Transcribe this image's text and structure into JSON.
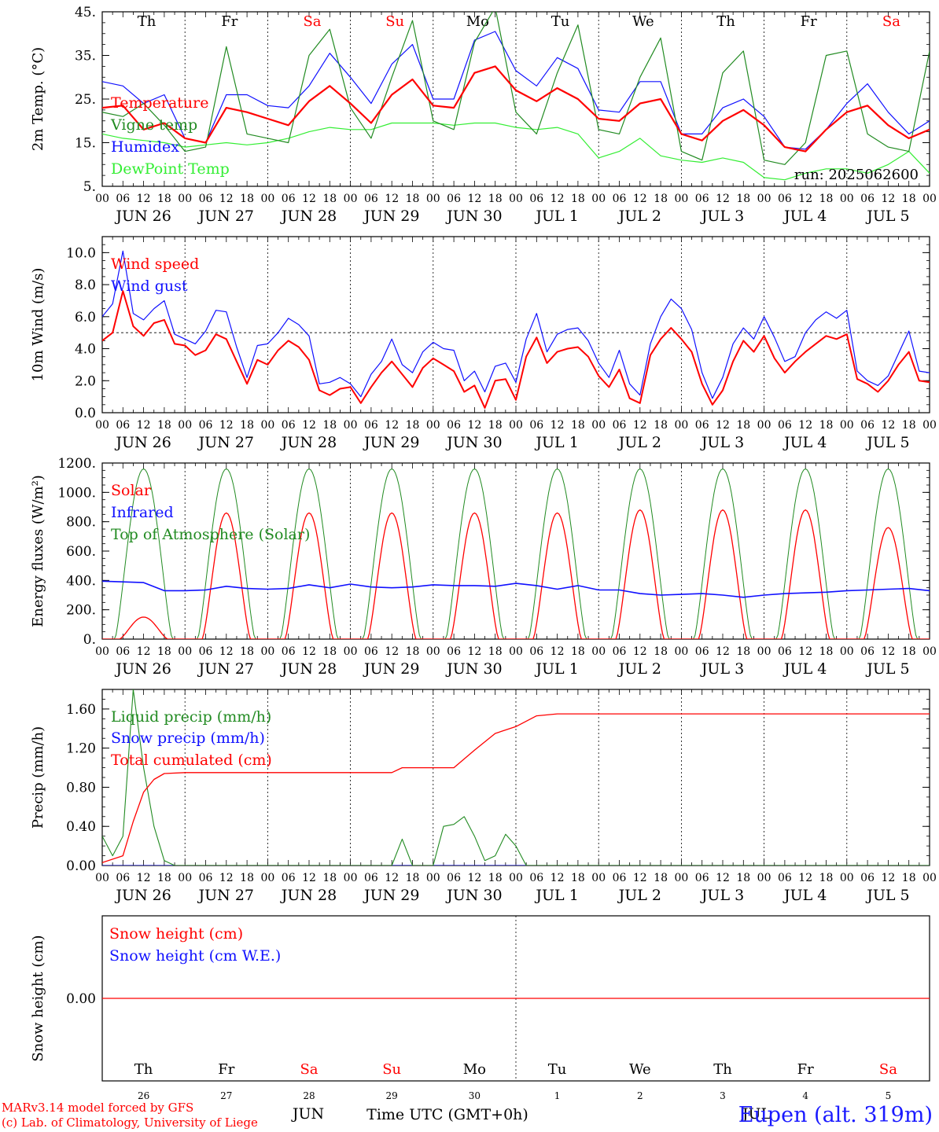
{
  "days": [
    "Th",
    "Fr",
    "Sa",
    "Su",
    "Mo",
    "Tu",
    "We",
    "Th",
    "Fr",
    "Sa"
  ],
  "day_colors": [
    "#000000",
    "#000000",
    "#ff0000",
    "#ff0000",
    "#000000",
    "#000000",
    "#000000",
    "#000000",
    "#000000",
    "#ff0000"
  ],
  "dates": [
    "JUN 26",
    "JUN 27",
    "JUN 28",
    "JUN 29",
    "JUN 30",
    "JUL  1",
    "JUL  2",
    "JUL  3",
    "JUL  4",
    "JUL  5"
  ],
  "hour_ticks": [
    "00",
    "06",
    "12",
    "18"
  ],
  "hour_end": "00",
  "bottom_day_numbers": [
    "26",
    "27",
    "28",
    "29",
    "30",
    "1",
    "2",
    "3",
    "4",
    "5"
  ],
  "bottom_month_left": "JUN",
  "bottom_month_right": "JUL",
  "xlabel": "Time UTC (GMT+0h)",
  "footer_line1": "MARv3.14 model forced by GFS",
  "footer_line2": "(c) Lab. of Climatology, University of Liege",
  "station": "Eupen (alt. 319m)",
  "colors": {
    "red": "#ff0000",
    "green": "#228B22",
    "blue": "#1010ff",
    "lime": "#33ee33",
    "black": "#000000"
  },
  "chart_data": [
    {
      "type": "line",
      "ylabel": "2m Temp. (°C)",
      "ylim": [
        5,
        45
      ],
      "yticks": [
        5,
        15,
        25,
        35,
        45
      ],
      "ytick_labels": [
        "5.",
        "15.",
        "25.",
        "35.",
        "45."
      ],
      "run_label": "run: 2025062600",
      "x_hours": [
        0,
        6,
        12,
        18,
        24,
        30,
        36,
        42,
        48,
        54,
        60,
        66,
        72,
        78,
        84,
        90,
        96,
        102,
        108,
        114,
        120,
        126,
        132,
        138,
        144,
        150,
        156,
        162,
        168,
        174,
        180,
        186,
        192,
        198,
        204,
        210,
        216,
        222,
        228,
        234,
        240
      ],
      "series": [
        {
          "name": "Temperature",
          "color": "#ff0000",
          "width": 2.2,
          "values": [
            23,
            23.5,
            18,
            19.5,
            16,
            15,
            23,
            22,
            20.5,
            19,
            24.5,
            28,
            24,
            19.5,
            26,
            29.5,
            23.5,
            23,
            31,
            32.5,
            27,
            24.5,
            27.5,
            25,
            20.5,
            20,
            24,
            25,
            17,
            15.5,
            20,
            22.5,
            19,
            14,
            13,
            18,
            22,
            23.5,
            19,
            16,
            18
          ]
        },
        {
          "name": "Vigne temp",
          "color": "#228B22",
          "width": 1.2,
          "values": [
            22,
            21,
            24,
            19,
            13,
            14,
            37,
            17,
            16,
            15,
            35,
            41,
            23,
            16,
            30,
            43,
            20,
            18,
            38,
            46,
            22,
            17,
            31,
            42,
            18,
            17,
            30,
            39,
            13,
            11,
            31,
            36,
            11,
            10,
            15,
            35,
            36,
            17,
            14,
            13,
            36
          ]
        },
        {
          "name": "Humidex",
          "color": "#1010ff",
          "width": 1.2,
          "values": [
            29,
            28,
            24,
            26,
            16,
            15,
            26,
            26,
            23.5,
            23,
            28,
            35.5,
            30,
            24,
            33,
            37.5,
            25,
            25,
            38.5,
            40.5,
            31.5,
            28,
            34.5,
            32,
            22.5,
            22,
            29,
            29,
            17,
            17,
            23,
            25,
            21,
            14,
            13.5,
            18,
            24,
            28.5,
            22,
            17,
            20
          ]
        },
        {
          "name": "DewPoint Temp",
          "color": "#33ee33",
          "width": 1.2,
          "values": [
            17,
            16,
            15.5,
            15,
            14,
            14.5,
            15,
            14.5,
            15,
            16,
            17.5,
            18.5,
            18,
            18,
            19.5,
            19.5,
            19.5,
            19,
            19.5,
            19.5,
            18.5,
            18,
            18.5,
            17,
            11.5,
            13,
            16,
            12,
            11,
            10.5,
            11.5,
            10.5,
            7,
            6.5,
            8,
            9,
            9,
            8,
            10,
            13,
            8
          ]
        }
      ]
    },
    {
      "type": "line",
      "ylabel": "10m Wind (m/s)",
      "ylim": [
        0,
        11
      ],
      "yticks": [
        0,
        2,
        4,
        6,
        8,
        10
      ],
      "ytick_labels": [
        "0.0",
        "2.0",
        "4.0",
        "6.0",
        "8.0",
        "10.0"
      ],
      "reference_line": 5,
      "x_hours": [
        0,
        3,
        6,
        9,
        12,
        15,
        18,
        21,
        24,
        27,
        30,
        33,
        36,
        39,
        42,
        45,
        48,
        51,
        54,
        57,
        60,
        63,
        66,
        69,
        72,
        75,
        78,
        81,
        84,
        87,
        90,
        93,
        96,
        99,
        102,
        105,
        108,
        111,
        114,
        117,
        120,
        123,
        126,
        129,
        132,
        135,
        138,
        141,
        144,
        147,
        150,
        153,
        156,
        159,
        162,
        165,
        168,
        171,
        174,
        177,
        180,
        183,
        186,
        189,
        192,
        195,
        198,
        201,
        204,
        207,
        210,
        213,
        216,
        219,
        222,
        225,
        228,
        231,
        234,
        237,
        240
      ],
      "series": [
        {
          "name": "Wind speed",
          "color": "#ff0000",
          "width": 2,
          "values": [
            4.5,
            5.0,
            7.6,
            5.4,
            4.8,
            5.6,
            5.8,
            4.3,
            4.2,
            3.6,
            3.9,
            4.9,
            4.6,
            3.2,
            1.8,
            3.3,
            3.0,
            3.9,
            4.5,
            4.1,
            3.3,
            1.4,
            1.1,
            1.5,
            1.6,
            0.6,
            1.6,
            2.5,
            3.2,
            2.4,
            1.6,
            2.8,
            3.4,
            3.0,
            2.6,
            1.3,
            1.7,
            0.3,
            2.0,
            2.1,
            0.8,
            3.5,
            4.7,
            3.1,
            3.8,
            4.0,
            4.1,
            3.5,
            2.3,
            1.6,
            2.7,
            0.9,
            0.6,
            3.6,
            4.6,
            5.3,
            4.6,
            3.8,
            1.8,
            0.5,
            1.4,
            3.2,
            4.5,
            3.8,
            4.8,
            3.4,
            2.5,
            3.2,
            3.8,
            4.3,
            4.8,
            4.6,
            4.9,
            2.1,
            1.8,
            1.3,
            2.0,
            3.0,
            3.8,
            2.0,
            1.9
          ]
        },
        {
          "name": "Wind gust",
          "color": "#1010ff",
          "width": 1.2,
          "values": [
            6.0,
            6.8,
            10.1,
            6.2,
            5.8,
            6.5,
            7.0,
            4.9,
            4.6,
            4.3,
            5.1,
            6.4,
            6.3,
            4.1,
            2.2,
            4.2,
            4.3,
            5.0,
            5.9,
            5.5,
            4.8,
            1.8,
            1.9,
            2.2,
            1.8,
            1.0,
            2.4,
            3.2,
            4.6,
            3.0,
            2.5,
            3.8,
            4.4,
            4.0,
            3.9,
            2.0,
            2.6,
            1.3,
            2.9,
            3.1,
            1.9,
            4.6,
            6.2,
            3.8,
            4.9,
            5.2,
            5.3,
            4.5,
            3.1,
            2.2,
            3.9,
            1.8,
            1.1,
            4.3,
            6.0,
            7.1,
            6.5,
            5.2,
            2.5,
            0.9,
            2.2,
            4.3,
            5.3,
            4.6,
            6.0,
            4.7,
            3.2,
            3.5,
            5.0,
            5.8,
            6.3,
            5.9,
            6.4,
            2.6,
            2.0,
            1.7,
            2.3,
            3.7,
            5.1,
            2.6,
            2.5
          ]
        }
      ]
    },
    {
      "type": "line",
      "ylabel": "Energy fluxes (W/m²)",
      "ylim": [
        0,
        1200
      ],
      "yticks": [
        0,
        200,
        400,
        600,
        800,
        1000,
        1200
      ],
      "ytick_labels": [
        "0.",
        "200.",
        "400.",
        "600.",
        "800.",
        "1000.",
        "1200."
      ],
      "series": [
        {
          "name": "Solar",
          "color": "#ff0000",
          "width": 1.3,
          "peaks": [
            150,
            860,
            860,
            860,
            860,
            860,
            880,
            880,
            880,
            760
          ]
        },
        {
          "name": "Infrared",
          "color": "#1010ff",
          "width": 1.6,
          "values": [
            395,
            390,
            385,
            330,
            330,
            335,
            360,
            345,
            340,
            345,
            370,
            350,
            375,
            355,
            350,
            355,
            370,
            365,
            365,
            360,
            380,
            365,
            340,
            365,
            335,
            335,
            310,
            300,
            305,
            310,
            300,
            285,
            300,
            310,
            315,
            320,
            330,
            335,
            340,
            345,
            330
          ]
        },
        {
          "name": "Top of Atmosphere (Solar)",
          "color": "#228B22",
          "width": 1,
          "peak": 1160
        }
      ]
    },
    {
      "type": "line",
      "ylabel": "Precip (mm/h)",
      "ylim": [
        0,
        1.8
      ],
      "yticks": [
        0,
        0.4,
        0.8,
        1.2,
        1.6
      ],
      "ytick_labels": [
        "0.00",
        "0.40",
        "0.80",
        "1.20",
        "1.60"
      ],
      "x_hours": [
        0,
        3,
        6,
        9,
        12,
        15,
        18,
        21,
        24,
        36,
        48,
        60,
        72,
        84,
        87,
        90,
        93,
        96,
        99,
        102,
        105,
        108,
        111,
        114,
        117,
        120,
        123,
        126,
        129,
        132,
        240
      ],
      "series": [
        {
          "name": "Liquid precip (mm/h)",
          "color": "#228B22",
          "width": 1.1,
          "values": [
            0.3,
            0.1,
            0.3,
            1.8,
            1.0,
            0.4,
            0.05,
            0,
            0,
            0,
            0,
            0,
            0,
            0,
            0.27,
            0,
            0,
            0,
            0.4,
            0.42,
            0.5,
            0.3,
            0.05,
            0.1,
            0.32,
            0.2,
            0,
            0,
            0,
            0,
            0
          ]
        },
        {
          "name": "Snow precip (mm/h)",
          "color": "#1010ff",
          "width": 1,
          "values": [
            0,
            0,
            0,
            0,
            0,
            0,
            0,
            0,
            0,
            0,
            0,
            0,
            0,
            0,
            0,
            0,
            0,
            0,
            0,
            0,
            0,
            0,
            0,
            0,
            0,
            0,
            0,
            0,
            0,
            0,
            0
          ]
        },
        {
          "name": "Total cumulated (cm)",
          "color": "#ff0000",
          "width": 1.3,
          "cum_x": [
            0,
            6,
            9,
            12,
            15,
            18,
            24,
            36,
            48,
            60,
            72,
            84,
            87,
            90,
            96,
            102,
            108,
            114,
            120,
            126,
            132,
            240
          ],
          "cum_values": [
            0.03,
            0.1,
            0.45,
            0.75,
            0.88,
            0.94,
            0.95,
            0.95,
            0.95,
            0.95,
            0.95,
            0.95,
            1.0,
            1.0,
            1.0,
            1.0,
            1.18,
            1.35,
            1.42,
            1.53,
            1.55,
            1.55
          ]
        }
      ]
    },
    {
      "type": "line",
      "ylabel": "Snow height (cm)",
      "ylim": [
        -1,
        1
      ],
      "yticks": [
        0
      ],
      "ytick_labels": [
        "0.00"
      ],
      "series": [
        {
          "name": "Snow height (cm)",
          "color": "#ff0000",
          "values": [
            0,
            0
          ]
        },
        {
          "name": "Snow height (cm W.E.)",
          "color": "#1010ff",
          "values": [
            0,
            0
          ]
        }
      ]
    }
  ]
}
